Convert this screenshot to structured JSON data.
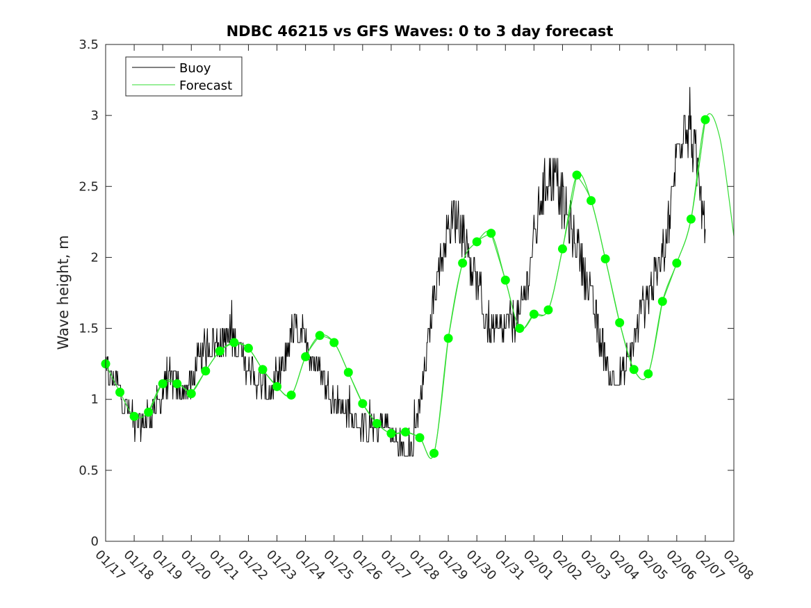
{
  "chart_data": {
    "type": "line",
    "title": "NDBC 46215 vs GFS Waves: 0 to 3 day forecast",
    "xlabel": "",
    "ylabel": "Wave height, m",
    "xlim": [
      0,
      22
    ],
    "ylim": [
      0,
      3.5
    ],
    "yticks": [
      0,
      0.5,
      1,
      1.5,
      2,
      2.5,
      3,
      3.5
    ],
    "ytick_labels": [
      "0",
      "0.5",
      "1",
      "1.5",
      "2",
      "2.5",
      "3",
      "3.5"
    ],
    "x_tick_labels": [
      "01/17",
      "01/18",
      "01/19",
      "01/20",
      "01/21",
      "01/22",
      "01/23",
      "01/24",
      "01/25",
      "01/26",
      "01/27",
      "01/28",
      "01/29",
      "01/30",
      "01/31",
      "02/01",
      "02/02",
      "02/03",
      "02/04",
      "02/05",
      "02/06",
      "02/07",
      "02/08"
    ],
    "legend": {
      "placement": "top-left",
      "entries": [
        {
          "label": "Buoy",
          "color": "#000000"
        },
        {
          "label": "Forecast",
          "color": "#00ff00"
        }
      ]
    },
    "grid": false,
    "colors": {
      "buoy": "#000000",
      "forecast": "#00ff00",
      "forecast_line": "#33dd33"
    },
    "buoy_anchor_days": [
      0,
      0.25,
      0.5,
      0.75,
      1,
      1.25,
      1.5,
      1.75,
      2,
      2.25,
      2.5,
      2.75,
      3,
      3.25,
      3.5,
      3.75,
      4,
      4.25,
      4.5,
      4.75,
      5,
      5.25,
      5.5,
      5.75,
      6,
      6.25,
      6.5,
      6.75,
      7,
      7.25,
      7.5,
      7.75,
      8,
      8.25,
      8.5,
      8.75,
      9,
      9.25,
      9.5,
      9.75,
      10,
      10.25,
      10.5,
      10.75,
      11,
      11.25,
      11.5,
      11.75,
      12,
      12.25,
      12.5,
      12.75,
      13,
      13.25,
      13.5,
      13.75,
      14,
      14.25,
      14.5,
      14.75,
      15,
      15.25,
      15.5,
      15.75,
      16,
      16.25,
      16.5,
      16.75,
      17,
      17.25,
      17.5,
      17.75,
      18,
      18.25,
      18.5,
      18.75,
      19,
      19.25,
      19.5,
      19.75,
      20,
      20.25,
      20.5,
      20.75,
      21,
      21.25,
      21.5,
      21.75,
      22
    ],
    "buoy_anchor_values": [
      1.2,
      1.15,
      1.05,
      0.95,
      0.85,
      0.82,
      0.85,
      0.95,
      1.05,
      1.15,
      1.1,
      1.05,
      1.1,
      1.25,
      1.35,
      1.4,
      1.4,
      1.45,
      1.4,
      1.3,
      1.2,
      1.15,
      1.1,
      1.05,
      1.1,
      1.25,
      1.45,
      1.5,
      1.4,
      1.3,
      1.2,
      1.1,
      1.0,
      0.95,
      0.88,
      0.85,
      0.8,
      0.78,
      0.8,
      0.85,
      0.75,
      0.7,
      0.65,
      0.65,
      1.0,
      1.3,
      1.75,
      2.0,
      2.2,
      2.3,
      2.2,
      2.0,
      1.8,
      1.6,
      1.5,
      1.45,
      1.5,
      1.55,
      1.6,
      1.8,
      2.1,
      2.4,
      2.6,
      2.55,
      2.4,
      2.25,
      2.1,
      1.9,
      1.7,
      1.5,
      1.3,
      1.15,
      1.1,
      1.2,
      1.4,
      1.6,
      1.75,
      1.85,
      2.0,
      2.3,
      2.7,
      3.0,
      2.9,
      2.55,
      2.2
    ],
    "forecast_cycles": [
      {
        "days": [
          0,
          0.5,
          1,
          1.5,
          2,
          2.5,
          3
        ],
        "values": [
          1.25,
          1.05,
          0.88,
          0.91,
          1.11,
          1.11,
          1.04
        ]
      },
      {
        "days": [
          1.5,
          2,
          2.5,
          3,
          3.5,
          4,
          4.5
        ],
        "values": [
          0.91,
          1.12,
          1.12,
          1.05,
          1.2,
          1.34,
          1.4
        ]
      },
      {
        "days": [
          3,
          3.5,
          4,
          4.5,
          5,
          5.5,
          6
        ],
        "values": [
          1.04,
          1.2,
          1.34,
          1.4,
          1.36,
          1.21,
          1.09
        ]
      },
      {
        "days": [
          4.5,
          5,
          5.5,
          6,
          6.5,
          7,
          7.5
        ],
        "values": [
          1.4,
          1.36,
          1.21,
          1.09,
          1.03,
          1.3,
          1.45
        ]
      },
      {
        "days": [
          6,
          6.5,
          7,
          7.5,
          8,
          8.5,
          9
        ],
        "values": [
          1.09,
          1.03,
          1.3,
          1.45,
          1.4,
          1.19,
          0.97
        ]
      },
      {
        "days": [
          7.5,
          8,
          8.5,
          9,
          9.5,
          10,
          10.5
        ],
        "values": [
          1.45,
          1.4,
          1.19,
          0.97,
          0.83,
          0.76,
          0.77
        ]
      },
      {
        "days": [
          9,
          9.5,
          10,
          10.5,
          11,
          11.5,
          12
        ],
        "values": [
          0.97,
          0.83,
          0.76,
          0.77,
          0.73,
          0.62,
          1.43
        ]
      },
      {
        "days": [
          10.5,
          11,
          11.5,
          12,
          12.5,
          13,
          13.5
        ],
        "values": [
          0.77,
          0.73,
          0.62,
          1.43,
          1.96,
          2.11,
          2.17
        ]
      },
      {
        "days": [
          12,
          12.5,
          13,
          13.5,
          14,
          14.5,
          15
        ],
        "values": [
          1.43,
          1.96,
          2.11,
          2.17,
          1.84,
          1.5,
          1.6
        ]
      },
      {
        "days": [
          13.5,
          14,
          14.5,
          15,
          15.5,
          16,
          16.5
        ],
        "values": [
          2.17,
          1.84,
          1.5,
          1.6,
          1.63,
          2.06,
          2.58
        ]
      },
      {
        "days": [
          15,
          15.5,
          16,
          16.5,
          17,
          17.5,
          18
        ],
        "values": [
          1.6,
          1.63,
          2.06,
          2.58,
          2.4,
          1.99,
          1.54
        ]
      },
      {
        "days": [
          16.5,
          17,
          17.5,
          18,
          18.5,
          19,
          19.5
        ],
        "values": [
          2.58,
          2.4,
          1.99,
          1.54,
          1.21,
          1.18,
          1.69
        ]
      },
      {
        "days": [
          18,
          18.5,
          19,
          19.5,
          20,
          20.5,
          21
        ],
        "values": [
          1.54,
          1.21,
          1.18,
          1.69,
          1.96,
          2.27,
          2.97
        ]
      },
      {
        "days": [
          19.5,
          20,
          20.5,
          21,
          21.5,
          22
        ],
        "values": [
          1.69,
          1.96,
          2.27,
          2.97,
          2.85,
          2.15
        ]
      }
    ],
    "forecast_markers": {
      "days": [
        0,
        0.5,
        1,
        1.5,
        2,
        2.5,
        3,
        3.5,
        4,
        4.5,
        5,
        5.5,
        6,
        6.5,
        7,
        7.5,
        8,
        8.5,
        9,
        9.5,
        10,
        10.5,
        11,
        11.5,
        12,
        12.5,
        13,
        13.5,
        14,
        14.5,
        15,
        15.5,
        16,
        16.5,
        17,
        17.5,
        18,
        18.5,
        19,
        19.5,
        20,
        20.5,
        21
      ],
      "values": [
        1.25,
        1.05,
        0.88,
        0.91,
        1.11,
        1.11,
        1.04,
        1.2,
        1.34,
        1.4,
        1.36,
        1.21,
        1.09,
        1.03,
        1.3,
        1.45,
        1.4,
        1.19,
        0.97,
        0.83,
        0.76,
        0.77,
        0.73,
        0.62,
        1.43,
        1.96,
        2.11,
        2.17,
        1.84,
        1.5,
        1.6,
        1.63,
        2.06,
        2.58,
        2.4,
        1.99,
        1.54,
        1.21,
        1.18,
        1.69,
        1.96,
        2.27,
        2.97
      ]
    }
  }
}
